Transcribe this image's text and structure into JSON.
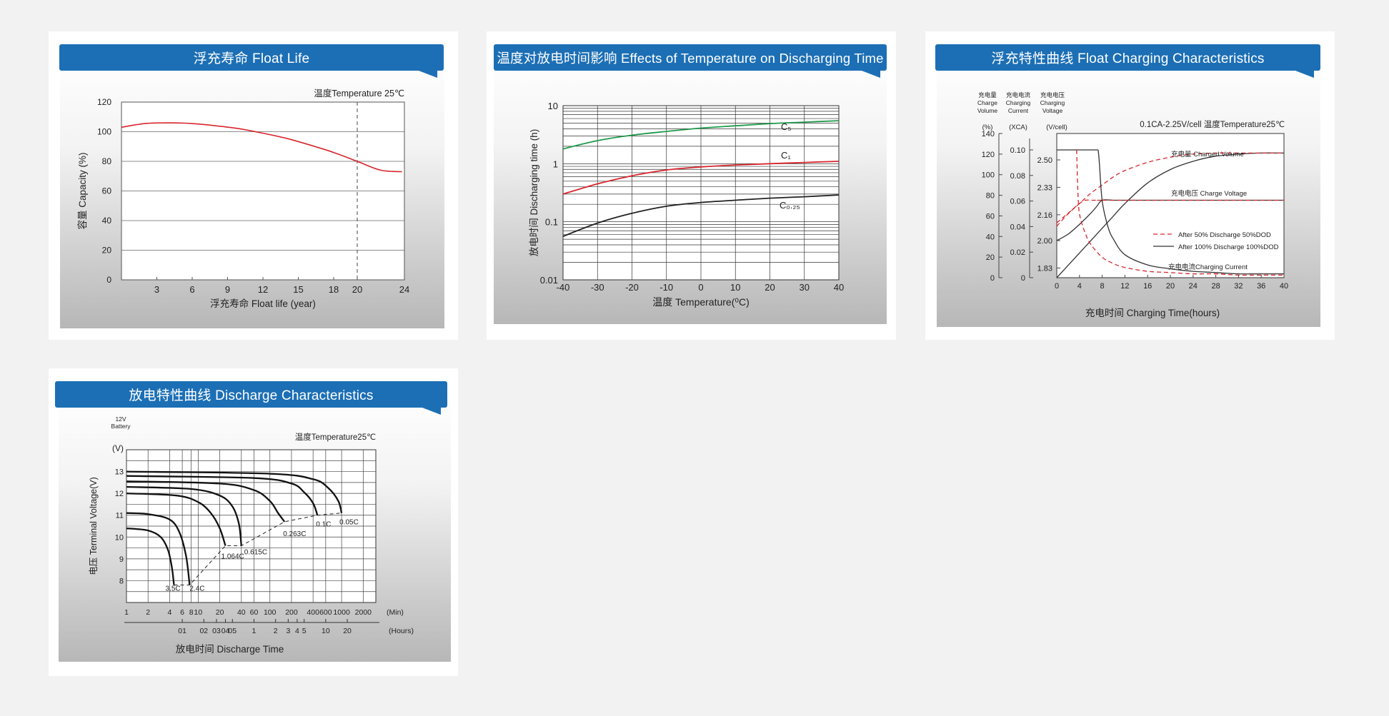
{
  "chart_data": [
    {
      "id": "float_life",
      "type": "line",
      "title": "浮充寿命 Float Life",
      "annotation": "温度Temperature 25℃",
      "xlabel": "浮充寿命  Float life (year)",
      "ylabel": "容量  Capacity (%)",
      "xlim": [
        0,
        24
      ],
      "ylim": [
        0,
        120
      ],
      "xticks": [
        "3",
        "6",
        "9",
        "12",
        "15",
        "18",
        "20",
        "24"
      ],
      "yticks": [
        "0",
        "20",
        "40",
        "60",
        "80",
        "100",
        "120"
      ],
      "grid": "horizontal",
      "reference_x": 20,
      "series": [
        {
          "color": "#d7262d",
          "x": [
            0,
            2,
            4,
            6,
            8,
            10,
            12,
            14,
            16,
            18,
            20,
            22,
            23.8
          ],
          "values": [
            103,
            105.5,
            106,
            105.5,
            104,
            102,
            99,
            95.5,
            91,
            86,
            80,
            74,
            73
          ]
        }
      ]
    },
    {
      "id": "temp_discharge",
      "type": "line",
      "title": "温度对放电时间影响 Effects of Temperature on Discharging Time",
      "xlabel": "温度  Temperature(⁰C)",
      "ylabel": "放电时间 Discharging time (h)",
      "xlim": [
        -40,
        40
      ],
      "ylim": [
        0.01,
        10
      ],
      "yscale": "log",
      "xticks": [
        "-40",
        "-30",
        "-20",
        "-10",
        "0",
        "10",
        "20",
        "30",
        "40"
      ],
      "yticks": [
        "0.01",
        "0.1",
        "1",
        "10"
      ],
      "grid": "both",
      "series": [
        {
          "name": "C₅",
          "color": "#1f9a4a",
          "x": [
            -40,
            -30,
            -20,
            -10,
            0,
            10,
            20,
            30,
            40
          ],
          "values": [
            1.8,
            2.5,
            3.1,
            3.6,
            4.1,
            4.5,
            4.9,
            5.2,
            5.5
          ]
        },
        {
          "name": "C₁",
          "color": "#d7262d",
          "x": [
            -40,
            -30,
            -20,
            -10,
            0,
            10,
            20,
            30,
            40
          ],
          "values": [
            0.3,
            0.45,
            0.62,
            0.78,
            0.88,
            0.95,
            1.0,
            1.05,
            1.1
          ]
        },
        {
          "name": "C₀.₂₅",
          "color": "#222222",
          "x": [
            -40,
            -30,
            -20,
            -10,
            0,
            10,
            20,
            30,
            40
          ],
          "values": [
            0.056,
            0.095,
            0.14,
            0.185,
            0.215,
            0.235,
            0.255,
            0.27,
            0.29
          ]
        }
      ]
    },
    {
      "id": "float_charging",
      "type": "line",
      "title": "浮充特性曲线 Float Charging Characteristics",
      "annotation": "0.1CA-2.25V/cell   温度Temperature25℃",
      "xlabel": "充电时间 Charging Time(hours)",
      "axis_headers": [
        {
          "cn": "充电量",
          "en1": "Charge",
          "en2": "Volume",
          "unit": "(%)"
        },
        {
          "cn": "充电电流",
          "en1": "Charging",
          "en2": "Current",
          "unit": "(XCA)"
        },
        {
          "cn": "充电电压",
          "en1": "Charging",
          "en2": "Voltage",
          "unit": "(V/cell)"
        }
      ],
      "xlim": [
        0,
        40
      ],
      "xticks": [
        "0",
        "4",
        "8",
        "12",
        "16",
        "20",
        "24",
        "28",
        "32",
        "36",
        "40"
      ],
      "volume_ticks": [
        "0",
        "20",
        "40",
        "60",
        "80",
        "100",
        "120",
        "140"
      ],
      "current_ticks": [
        "0",
        "0.02",
        "0.04",
        "0.06",
        "0.08",
        "0.10"
      ],
      "voltage_ticks": [
        "1.83",
        "2.00",
        "2.16",
        "2.33",
        "2.50"
      ],
      "curve_labels": [
        "充电量 Charged Volume",
        "充电电压 Charge Voltage",
        "充电电流Charging Current"
      ],
      "legend": [
        "After 50% Discharge 50%DOD",
        "After 100%  Discharge 100%DOD"
      ],
      "series": [
        {
          "name": "Charged Volume 100%DOD",
          "style": "solid",
          "x": [
            0,
            2,
            4,
            6,
            8,
            10,
            12,
            16,
            20,
            24,
            28,
            32,
            36,
            40
          ],
          "values": [
            0,
            12,
            24,
            36,
            48,
            60,
            72,
            92,
            105,
            113,
            118,
            120,
            121,
            121
          ]
        },
        {
          "name": "Charged Volume 50%DOD",
          "style": "dashed",
          "x": [
            0,
            2,
            4,
            6,
            8,
            10,
            12,
            16,
            20,
            24,
            28,
            32,
            36,
            40
          ],
          "values": [
            50,
            62,
            72,
            82,
            90,
            98,
            104,
            112,
            117,
            120,
            121,
            121,
            121,
            121
          ]
        },
        {
          "name": "Charge Voltage 100%DOD",
          "style": "solid",
          "x": [
            0,
            2,
            4,
            6,
            7,
            8,
            10,
            12,
            16,
            20,
            24,
            28,
            32,
            36,
            40
          ],
          "values": [
            2.0,
            2.04,
            2.1,
            2.17,
            2.21,
            2.25,
            2.25,
            2.25,
            2.25,
            2.25,
            2.25,
            2.25,
            2.25,
            2.25,
            2.25
          ]
        },
        {
          "name": "Charge Voltage 50%DOD",
          "style": "dashed",
          "x": [
            0,
            1,
            2,
            3,
            4,
            5,
            6,
            8,
            10,
            40
          ],
          "values": [
            2.11,
            2.14,
            2.17,
            2.2,
            2.23,
            2.25,
            2.25,
            2.25,
            2.25,
            2.25
          ]
        },
        {
          "name": "Charging Current 100%DOD",
          "style": "solid",
          "x": [
            0,
            7.3,
            7.5,
            8,
            9,
            10,
            12,
            16,
            20,
            24,
            28,
            32,
            36,
            40
          ],
          "values": [
            0.1,
            0.1,
            0.09,
            0.06,
            0.04,
            0.03,
            0.018,
            0.01,
            0.007,
            0.005,
            0.004,
            0.003,
            0.003,
            0.003
          ]
        },
        {
          "name": "Charging Current 50%DOD",
          "style": "dashed",
          "x": [
            3.5,
            3.7,
            4,
            5,
            6,
            8,
            10,
            12,
            16,
            20,
            24,
            28,
            32,
            36,
            40
          ],
          "values": [
            0.1,
            0.07,
            0.05,
            0.035,
            0.026,
            0.016,
            0.011,
            0.008,
            0.005,
            0.004,
            0.003,
            0.003,
            0.002,
            0.002,
            0.002
          ]
        }
      ]
    },
    {
      "id": "discharge",
      "type": "line",
      "title": "放电特性曲线 Discharge Characteristics",
      "annotation": "温度Temperature25℃",
      "battery_label": [
        "12V",
        "Battery"
      ],
      "y_unit": "(V)",
      "ylabel": "电压 Terminal Voltage(V)",
      "xlabel": "放电时间 Discharge Time",
      "xscale": "log",
      "xlim_min": [
        1,
        3000
      ],
      "ylim": [
        7,
        14
      ],
      "yticks": [
        "8",
        "9",
        "10",
        "11",
        "12",
        "13"
      ],
      "minute_ticks": [
        "1",
        "2",
        "4",
        "6",
        "8",
        "10",
        "20",
        "40",
        "60",
        "100",
        "200",
        "400",
        "600",
        "1000",
        "2000"
      ],
      "minute_unit": "(Min)",
      "hour_ticks": [
        "01",
        "02",
        "03",
        "04",
        "05",
        "1",
        "2",
        "3",
        "4",
        "5",
        "10",
        "20"
      ],
      "hour_unit": "(Hours)",
      "series": [
        {
          "name": "3.5C",
          "x": [
            1,
            2,
            3,
            3.8,
            4.3,
            4.6
          ],
          "values": [
            10.4,
            10.3,
            10.0,
            9.4,
            8.6,
            7.8
          ]
        },
        {
          "name": "2.4C",
          "x": [
            1,
            2,
            4,
            5.5,
            6.8,
            7.6
          ],
          "values": [
            11.1,
            11.05,
            10.8,
            10.2,
            9.1,
            7.8
          ]
        },
        {
          "name": "1.064C",
          "x": [
            1,
            5,
            10,
            15,
            20,
            24
          ],
          "values": [
            12.0,
            11.9,
            11.6,
            11.1,
            10.4,
            9.6
          ]
        },
        {
          "name": "0.615C",
          "x": [
            1,
            8,
            20,
            30,
            37,
            40
          ],
          "values": [
            12.3,
            12.2,
            11.9,
            11.4,
            10.6,
            9.6
          ]
        },
        {
          "name": "0.263C",
          "x": [
            1,
            20,
            60,
            100,
            130,
            160
          ],
          "values": [
            12.55,
            12.45,
            12.15,
            11.65,
            11.1,
            10.7
          ]
        },
        {
          "name": "0.1C",
          "x": [
            1,
            60,
            200,
            300,
            400,
            460
          ],
          "values": [
            12.8,
            12.7,
            12.45,
            12.05,
            11.55,
            11.0
          ]
        },
        {
          "name": "0.05C",
          "x": [
            1,
            100,
            400,
            650,
            900,
            1000
          ],
          "values": [
            13.0,
            12.9,
            12.65,
            12.25,
            11.65,
            11.1
          ]
        }
      ],
      "cutoff_line": {
        "x": [
          4.6,
          7.6,
          24,
          40,
          160,
          460,
          1000
        ],
        "values": [
          7.8,
          7.8,
          9.6,
          9.6,
          10.7,
          11.0,
          11.1
        ]
      }
    }
  ]
}
